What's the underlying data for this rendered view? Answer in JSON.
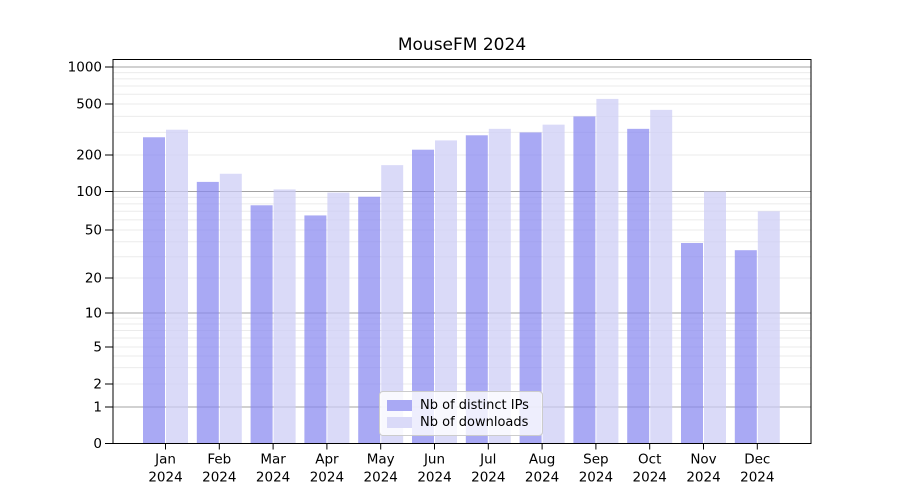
{
  "chart_data": {
    "type": "bar",
    "title": "MouseFM 2024",
    "categories": [
      "Jan 2024",
      "Feb 2024",
      "Mar 2024",
      "Apr 2024",
      "May 2024",
      "Jun 2024",
      "Jul 2024",
      "Aug 2024",
      "Sep 2024",
      "Oct 2024",
      "Nov 2024",
      "Dec 2024"
    ],
    "series": [
      {
        "name": "Nb of distinct IPs",
        "color": "#8888f0",
        "opacity": 0.72,
        "values": [
          275,
          120,
          78,
          65,
          91,
          220,
          285,
          300,
          400,
          320,
          39,
          34
        ]
      },
      {
        "name": "Nb of downloads",
        "color": "#ccccf5",
        "opacity": 0.72,
        "values": [
          315,
          140,
          104,
          98,
          165,
          260,
          320,
          345,
          550,
          450,
          100,
          70
        ]
      }
    ],
    "yticks": [
      0,
      1,
      2,
      5,
      10,
      20,
      50,
      100,
      200,
      500,
      1000
    ],
    "ylim": [
      0,
      1000
    ],
    "yscale": "symlog",
    "grid": "both",
    "legend_position": "lower center inside plot",
    "xlabel": "",
    "ylabel": ""
  },
  "colors": {
    "grid_major": "#a3a3a3",
    "grid_minor": "#ebebeb",
    "axis": "#000000",
    "text": "#000000",
    "legend_border": "#cccccc",
    "legend_bg": "rgba(255,255,255,0.8)",
    "background": "#ffffff"
  }
}
